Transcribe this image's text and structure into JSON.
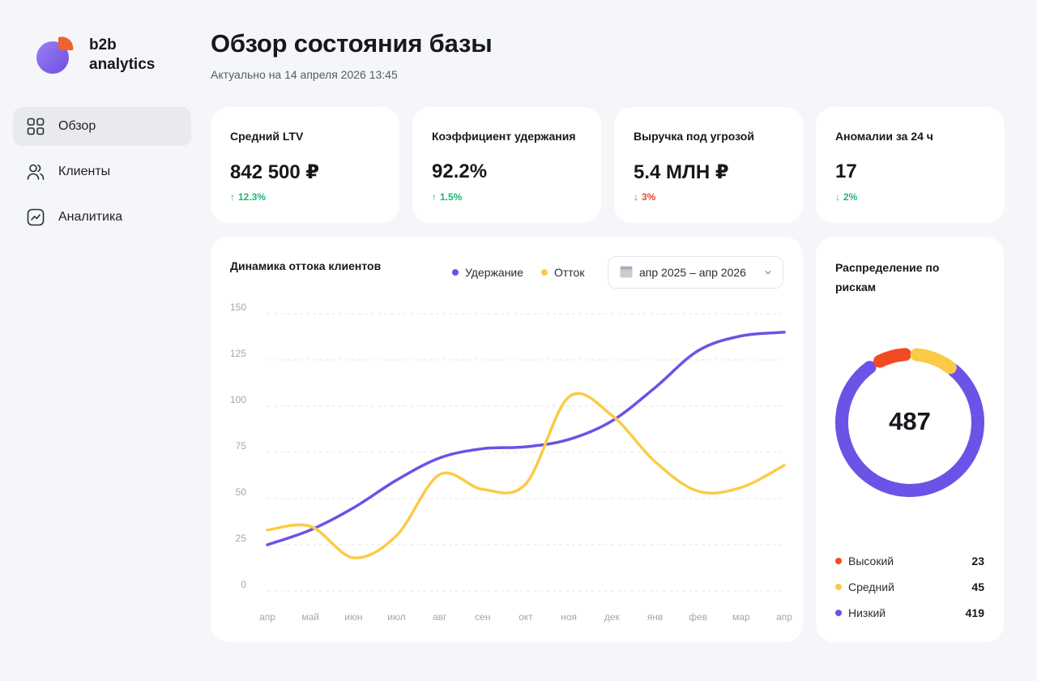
{
  "brand": {
    "line1": "b2b",
    "line2": "analytics"
  },
  "nav": [
    {
      "label": "Обзор",
      "icon": "grid-icon",
      "active": true
    },
    {
      "label": "Клиенты",
      "icon": "users-icon",
      "active": false
    },
    {
      "label": "Аналитика",
      "icon": "chart-icon",
      "active": false
    }
  ],
  "header": {
    "title": "Обзор состояния базы",
    "subtitle": "Актуально на 14 апреля 2026 13:45"
  },
  "kpis": [
    {
      "label": "Средний LTV",
      "value": "842 500 ₽",
      "delta": "12.3%",
      "direction": "up",
      "tone": "positive"
    },
    {
      "label": "Коэффициент удержания",
      "value": "92.2%",
      "delta": "1.5%",
      "direction": "up",
      "tone": "positive"
    },
    {
      "label": "Выручка под угрозой",
      "value": "5.4 МЛН ₽",
      "delta": "3%",
      "direction": "down",
      "tone": "negative"
    },
    {
      "label": "Аномалии за 24 ч",
      "value": "17",
      "delta": "2%",
      "direction": "down",
      "tone": "positive"
    }
  ],
  "colors": {
    "retention": "#6c52e6",
    "churn": "#fbcb47",
    "high": "#f24a22",
    "medium": "#fbcb47",
    "low": "#6c52e6",
    "up": "#22b573",
    "down": "#e0493c"
  },
  "churn_chart": {
    "title": "Динамика оттока клиентов",
    "date_range": "апр 2025 – апр 2026"
  },
  "chart_data": [
    {
      "type": "line",
      "title": "Динамика оттока клиентов",
      "categories": [
        "апр",
        "май",
        "июн",
        "июл",
        "авг",
        "сен",
        "окт",
        "ноя",
        "дек",
        "янв",
        "фев",
        "мар",
        "апр"
      ],
      "series": [
        {
          "name": "Удержание",
          "values": [
            25,
            33,
            45,
            60,
            72,
            77,
            78,
            82,
            92,
            110,
            130,
            138,
            140
          ]
        },
        {
          "name": "Отток",
          "values": [
            33,
            35,
            18,
            30,
            63,
            55,
            58,
            105,
            95,
            70,
            54,
            56,
            68
          ]
        }
      ],
      "y_ticks": [
        0,
        25,
        50,
        75,
        100,
        125,
        150
      ],
      "ylim": [
        0,
        150
      ],
      "grid": true,
      "legend": "top-right"
    },
    {
      "type": "pie",
      "title": "Распределение по рискам",
      "total": "487",
      "categories": [
        "Высокий",
        "Средний",
        "Низкий"
      ],
      "values": [
        23,
        45,
        419
      ]
    }
  ]
}
